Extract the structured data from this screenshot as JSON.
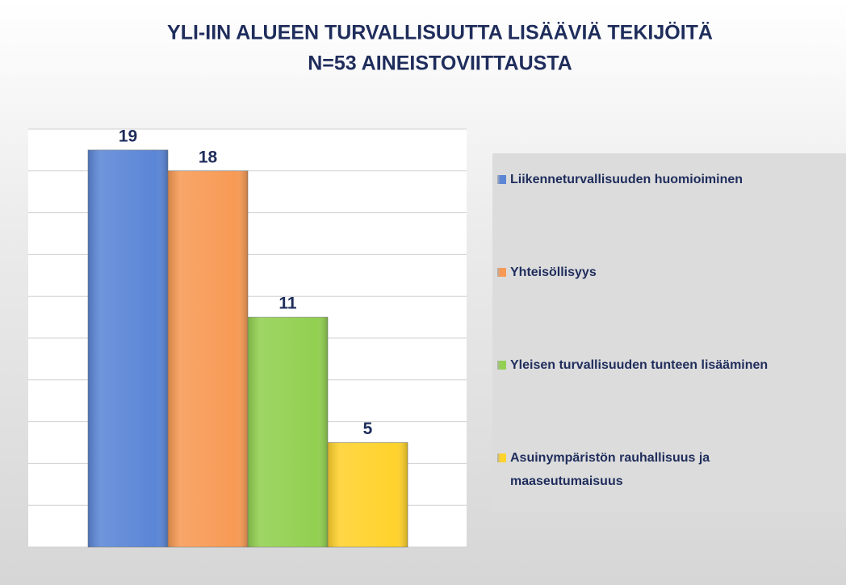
{
  "chart_data": {
    "type": "bar",
    "title": [
      "YLI-IIN ALUEEN TURVALLISUUTTA LISÄÄVIÄ TEKIJÖITÄ",
      "N=53 AINEISTOVIITTAUSTA"
    ],
    "categories": [
      "Liikenneturvallisuuden huomioiminen",
      "Yhteisöllisyys",
      "Yleisen turvallisuuden tunteen lisääminen",
      "Asuinympäristön rauhallisuus ja maaseutumaisuus"
    ],
    "values": [
      19,
      18,
      11,
      5
    ],
    "colors": [
      "#5b86d6",
      "#f79a55",
      "#92d050",
      "#ffd22c"
    ],
    "ylim": [
      0,
      20
    ],
    "yticks": [
      0,
      2,
      4,
      6,
      8,
      10,
      12,
      14,
      16,
      18,
      20
    ],
    "grid": true
  }
}
